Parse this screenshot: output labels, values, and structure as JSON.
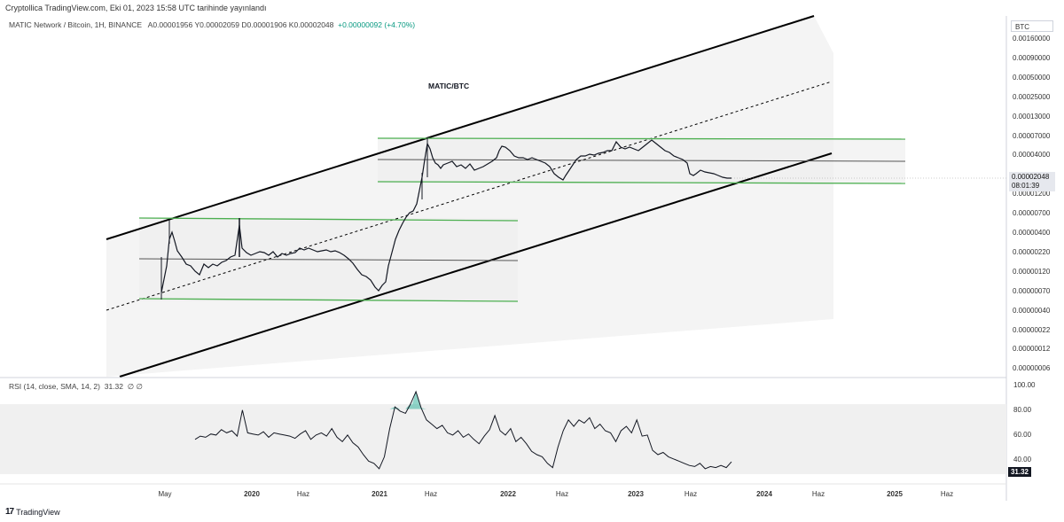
{
  "caption": "Cryptollica TradingView.com, Eki 01, 2023 15:58 UTC tarihinde yayınlandı",
  "legend": {
    "symbol": "MATIC Network / Bitcoin, 1H, BINANCE",
    "ohlc": "A0.00001956  Y0.00002059  D0.00001906  K0.00002048",
    "change": "+0.00000092 (+4.70%)"
  },
  "annotation": "MATIC/BTC",
  "currency_box": "BTC",
  "price_scale": [
    "0.00160000",
    "0.00090000",
    "0.00050000",
    "0.00025000",
    "0.00013000",
    "0.00007000",
    "0.00004000",
    "0.00002048",
    "0.00001200",
    "0.00000700",
    "0.00000400",
    "0.00000220",
    "0.00000120",
    "0.00000070",
    "0.00000040",
    "0.00000022",
    "0.00000012",
    "0.00000006"
  ],
  "price_tag": {
    "price": "0.00002048",
    "countdown": "08:01:39"
  },
  "rsi": {
    "legend": "RSI (14, close, SMA, 14, 2)",
    "value_label": "31.32",
    "extra": "∅  ∅",
    "ticks": [
      "100.00",
      "80.00",
      "60.00",
      "40.00"
    ],
    "tag": "31.32",
    "series": [
      52,
      55,
      54,
      57,
      56,
      61,
      58,
      60,
      55,
      79,
      58,
      57,
      56,
      59,
      54,
      58,
      57,
      56,
      55,
      53,
      57,
      60,
      52,
      56,
      58,
      55,
      62,
      54,
      50,
      56,
      49,
      45,
      38,
      32,
      30,
      25,
      36,
      62,
      82,
      78,
      76,
      85,
      96,
      81,
      70,
      66,
      62,
      65,
      58,
      56,
      60,
      54,
      57,
      52,
      48,
      55,
      61,
      74,
      60,
      56,
      62,
      50,
      54,
      48,
      41,
      38,
      36,
      30,
      26,
      45,
      60,
      70,
      64,
      70,
      67,
      72,
      62,
      66,
      60,
      58,
      50,
      60,
      64,
      58,
      70,
      55,
      56,
      42,
      38,
      40,
      36,
      34,
      32,
      30,
      28,
      27,
      30,
      25,
      27,
      26,
      28,
      26,
      31.32
    ],
    "color_line": "#131722",
    "color_ob": "#22ab94"
  },
  "time_axis": [
    {
      "label": "May",
      "bold": false
    },
    {
      "label": "2020",
      "bold": true
    },
    {
      "label": "Haz",
      "bold": false
    },
    {
      "label": "2021",
      "bold": true
    },
    {
      "label": "Haz",
      "bold": false
    },
    {
      "label": "2022",
      "bold": true
    },
    {
      "label": "Haz",
      "bold": false
    },
    {
      "label": "2023",
      "bold": true
    },
    {
      "label": "Haz",
      "bold": false
    },
    {
      "label": "2024",
      "bold": true
    },
    {
      "label": "Haz",
      "bold": false
    },
    {
      "label": "2025",
      "bold": true
    },
    {
      "label": "Haz",
      "bold": false
    }
  ],
  "branding": "TradingView",
  "colors": {
    "channel_line": "#000000",
    "range_line": "#4caf50",
    "candle": "#131722",
    "background_fill": "#f5f5f5"
  }
}
